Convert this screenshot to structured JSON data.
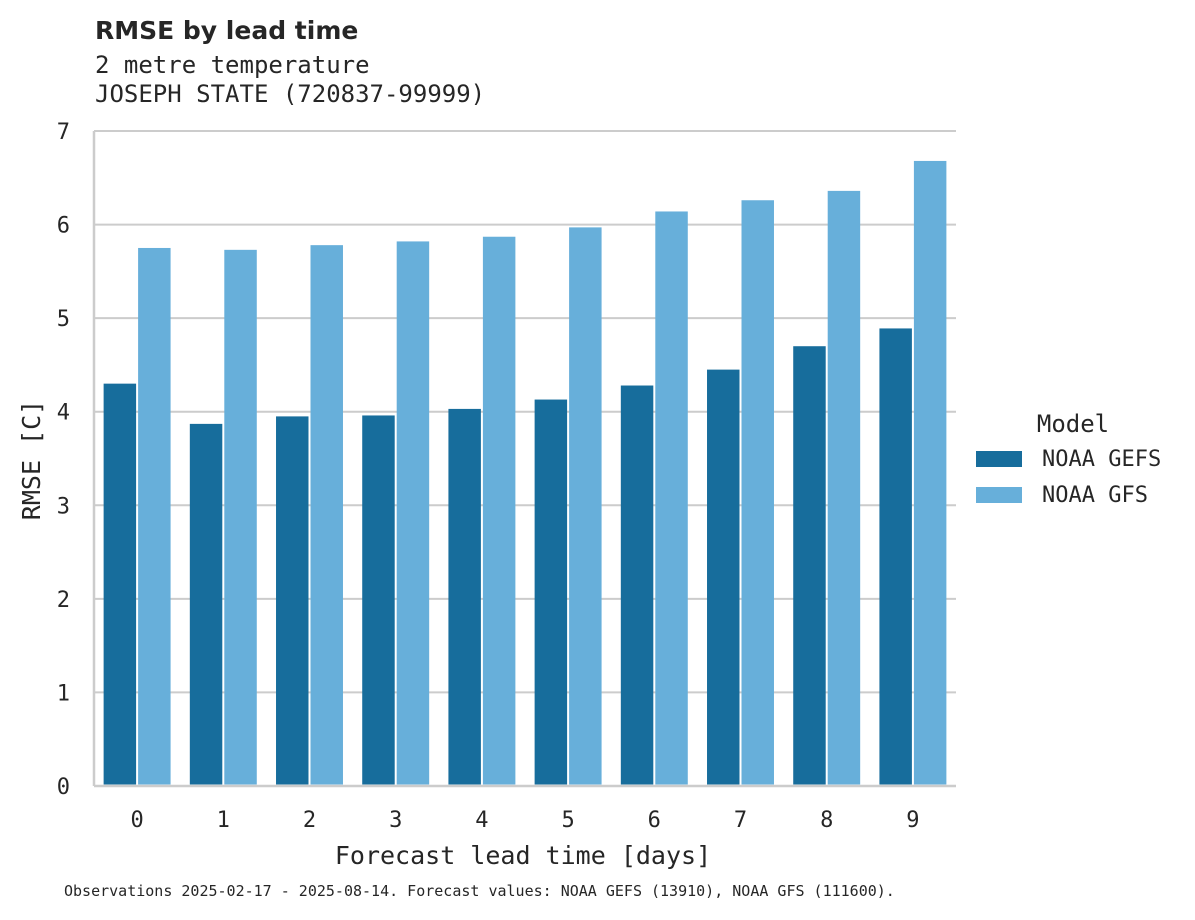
{
  "chart_data": {
    "type": "bar",
    "title": "RMSE by lead time",
    "subtitle_lines": [
      "2 metre temperature",
      "JOSEPH STATE (720837-99999)"
    ],
    "xlabel": "Forecast lead time [days]",
    "ylabel": "RMSE [C]",
    "categories": [
      "0",
      "1",
      "2",
      "3",
      "4",
      "5",
      "6",
      "7",
      "8",
      "9"
    ],
    "ylim": [
      0,
      7
    ],
    "yticks": [
      0,
      1,
      2,
      3,
      4,
      5,
      6,
      7
    ],
    "grid": "horizontal",
    "legend": {
      "title": "Model",
      "placement": "right"
    },
    "series": [
      {
        "name": "NOAA GEFS",
        "color": "#176d9c",
        "values": [
          4.3,
          3.87,
          3.95,
          3.96,
          4.03,
          4.13,
          4.28,
          4.45,
          4.7,
          4.89
        ]
      },
      {
        "name": "NOAA GFS",
        "color": "#67afda",
        "values": [
          5.75,
          5.73,
          5.78,
          5.82,
          5.87,
          5.97,
          6.14,
          6.26,
          6.36,
          6.68
        ]
      }
    ],
    "footnote": "Observations 2025-02-17 - 2025-08-14. Forecast values: NOAA GEFS (13910), NOAA GFS (111600)."
  }
}
